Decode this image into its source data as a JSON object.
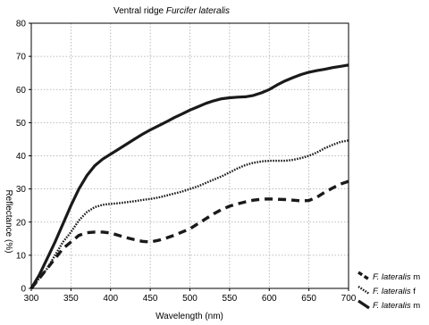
{
  "chart_data": {
    "type": "line",
    "title": {
      "prefix": "Ventral ridge ",
      "species": "Furcifer lateralis"
    },
    "xlabel": "Wavelength (nm)",
    "ylabel": "Reflectance (%)",
    "xlim": [
      300,
      700
    ],
    "ylim": [
      0,
      80
    ],
    "xticks": [
      300,
      350,
      400,
      450,
      500,
      550,
      600,
      650,
      700
    ],
    "yticks": [
      0,
      10,
      20,
      30,
      40,
      50,
      60,
      70,
      80
    ],
    "grid": true,
    "legend_position": "bottom-right outside",
    "series": [
      {
        "name": "F. lateralis m",
        "legend_italic": "F. lateralis",
        "legend_suffix": " m",
        "style": "dashed",
        "x": [
          300,
          310,
          320,
          330,
          340,
          350,
          360,
          370,
          380,
          390,
          400,
          410,
          420,
          430,
          440,
          450,
          460,
          470,
          480,
          490,
          500,
          510,
          520,
          530,
          540,
          550,
          560,
          570,
          580,
          590,
          600,
          610,
          620,
          630,
          640,
          650,
          660,
          670,
          680,
          690,
          700
        ],
        "y": [
          0,
          3,
          6,
          9,
          12,
          14,
          16,
          16.8,
          17,
          17,
          16.7,
          16,
          15.3,
          14.7,
          14.2,
          14,
          14.5,
          15.2,
          16,
          17,
          18,
          19.5,
          21,
          22.5,
          23.8,
          24.8,
          25.5,
          26.1,
          26.6,
          26.9,
          27,
          26.9,
          26.8,
          26.6,
          26.4,
          26.5,
          27.5,
          29,
          30.3,
          31.5,
          32.3
        ]
      },
      {
        "name": "F. lateralis f",
        "legend_italic": "F. lateralis",
        "legend_suffix": " f",
        "style": "dotted",
        "x": [
          300,
          310,
          320,
          330,
          340,
          350,
          360,
          370,
          380,
          390,
          400,
          410,
          420,
          430,
          440,
          450,
          460,
          470,
          480,
          490,
          500,
          510,
          520,
          530,
          540,
          550,
          560,
          570,
          580,
          590,
          600,
          610,
          620,
          630,
          640,
          650,
          660,
          670,
          680,
          690,
          700
        ],
        "y": [
          0,
          3,
          6,
          10,
          14,
          17,
          20.5,
          23,
          24.5,
          25.2,
          25.5,
          25.7,
          26,
          26.3,
          26.7,
          27,
          27.4,
          28,
          28.6,
          29.2,
          30,
          30.8,
          31.8,
          32.8,
          33.8,
          35,
          36.2,
          37.2,
          37.9,
          38.3,
          38.5,
          38.5,
          38.5,
          38.8,
          39.3,
          40,
          41,
          42.3,
          43.3,
          44.2,
          44.6
        ]
      },
      {
        "name": "F. lateralis m",
        "legend_italic": "F. lateralis",
        "legend_suffix": " m",
        "style": "solid",
        "x": [
          300,
          310,
          320,
          330,
          340,
          350,
          360,
          370,
          380,
          390,
          400,
          410,
          420,
          430,
          440,
          450,
          460,
          470,
          480,
          490,
          500,
          510,
          520,
          530,
          540,
          550,
          560,
          570,
          580,
          590,
          600,
          610,
          620,
          630,
          640,
          650,
          660,
          670,
          680,
          690,
          700
        ],
        "y": [
          0,
          4,
          9,
          14,
          19.5,
          25,
          30,
          34,
          37,
          39,
          40.5,
          42,
          43.5,
          45,
          46.5,
          47.8,
          49,
          50.2,
          51.5,
          52.6,
          53.8,
          54.8,
          55.8,
          56.6,
          57.2,
          57.5,
          57.7,
          57.8,
          58.2,
          59,
          60,
          61.4,
          62.6,
          63.6,
          64.5,
          65.2,
          65.7,
          66.1,
          66.6,
          67,
          67.4
        ]
      }
    ]
  }
}
